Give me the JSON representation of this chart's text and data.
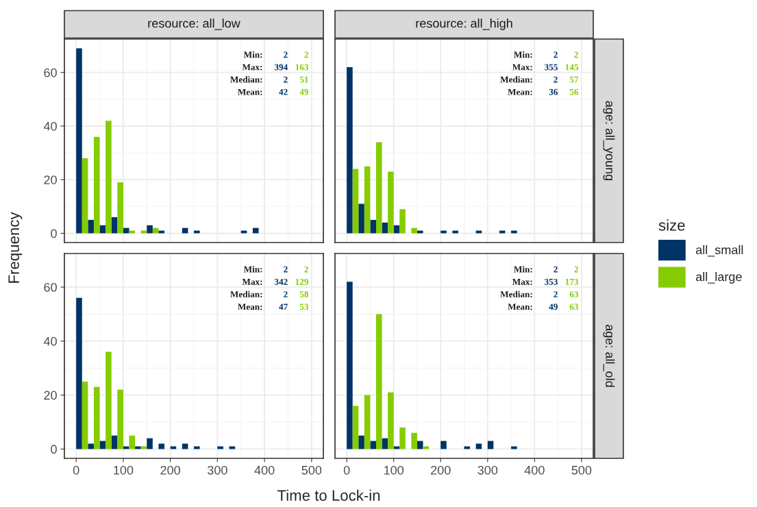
{
  "chart_data": [
    {
      "type": "histogram",
      "title": "resource: all_low",
      "ylabel": "Frequency",
      "legend_title": "size",
      "legend": "right",
      "grid": true,
      "tick_labels": "y",
      "bins": [
        0,
        25,
        50,
        75,
        100,
        125,
        150,
        175,
        200,
        225,
        250,
        275,
        300,
        325,
        350,
        375,
        400
      ],
      "series": [
        {
          "name": "all_small",
          "color": "#003366",
          "values": [
            69,
            5,
            3,
            6,
            2,
            0,
            3,
            1,
            0,
            2,
            1,
            0,
            0,
            0,
            1,
            2
          ]
        },
        {
          "name": "all_large",
          "color": "#85cc00",
          "values": [
            28,
            36,
            42,
            19,
            1,
            1,
            2,
            0,
            0,
            0,
            0,
            0,
            0,
            0,
            0,
            0
          ]
        }
      ],
      "xlim": [
        -25,
        525
      ],
      "xticks": [
        0,
        100,
        200,
        300,
        400,
        500
      ],
      "ylim": [
        -3.45,
        72.45
      ],
      "yticks": [
        0,
        20,
        40,
        60
      ],
      "annotations": [
        "Min:",
        "Max:",
        "Median:",
        "Mean:",
        "2",
        "394",
        "2",
        "42",
        "2",
        "163",
        "51",
        "49"
      ]
    },
    {
      "type": "histogram",
      "title": "resource: all_high",
      "y2label": "age: all_young",
      "grid": true,
      "tick_labels": false,
      "bins": [
        0,
        25,
        50,
        75,
        100,
        125,
        150,
        175,
        200,
        225,
        250,
        275,
        300,
        325,
        350,
        375,
        400
      ],
      "series": [
        {
          "color": "#003366",
          "values": [
            62,
            11,
            5,
            4,
            3,
            0,
            1,
            0,
            1,
            1,
            0,
            1,
            0,
            1,
            1,
            0
          ]
        },
        {
          "color": "#85cc00",
          "values": [
            24,
            25,
            34,
            23,
            9,
            2,
            0,
            0,
            0,
            0,
            0,
            0,
            0,
            0,
            0,
            0
          ]
        }
      ],
      "xlim": [
        -25,
        525
      ],
      "xticks": [
        0,
        100,
        200,
        300,
        400,
        500
      ],
      "ylim": [
        -3.45,
        72.45
      ],
      "yticks": [
        0,
        20,
        40,
        60
      ],
      "annotations": [
        "Min:",
        "Max:",
        "Median:",
        "Mean:",
        "2",
        "355",
        "2",
        "36",
        "2",
        "145",
        "57",
        "56"
      ]
    },
    {
      "type": "histogram",
      "xlabel": "Time to Lock-in",
      "grid": true,
      "bins": [
        0,
        25,
        50,
        75,
        100,
        125,
        150,
        175,
        200,
        225,
        250,
        275,
        300,
        325,
        350,
        375,
        400
      ],
      "series": [
        {
          "color": "#003366",
          "values": [
            56,
            2,
            3,
            5,
            1,
            1,
            4,
            2,
            1,
            2,
            1,
            0,
            1,
            1,
            0,
            0
          ]
        },
        {
          "color": "#85cc00",
          "values": [
            25,
            23,
            36,
            22,
            5,
            1,
            0,
            0,
            0,
            0,
            0,
            0,
            0,
            0,
            0,
            0
          ]
        }
      ],
      "xlim": [
        -25,
        525
      ],
      "xticks": [
        0,
        100,
        200,
        300,
        400,
        500
      ],
      "ylim": [
        -3.45,
        72.45
      ],
      "yticks": [
        0,
        20,
        40,
        60
      ],
      "annotations": [
        "Min:",
        "Max:",
        "Median:",
        "Mean:",
        "2",
        "342",
        "2",
        "47",
        "2",
        "129",
        "58",
        "53"
      ]
    },
    {
      "type": "histogram",
      "y2label": "age: all_old",
      "grid": true,
      "tick_labels": "x",
      "bins": [
        0,
        25,
        50,
        75,
        100,
        125,
        150,
        175,
        200,
        225,
        250,
        275,
        300,
        325,
        350,
        375,
        400
      ],
      "series": [
        {
          "color": "#003366",
          "values": [
            62,
            5,
            3,
            4,
            1,
            0,
            3,
            0,
            3,
            0,
            1,
            2,
            3,
            0,
            1,
            0
          ]
        },
        {
          "color": "#85cc00",
          "values": [
            16,
            20,
            50,
            21,
            8,
            6,
            1,
            0,
            0,
            0,
            0,
            0,
            0,
            0,
            0,
            0
          ]
        }
      ],
      "xlim": [
        -25,
        525
      ],
      "xticks": [
        0,
        100,
        200,
        300,
        400,
        500
      ],
      "ylim": [
        -3.45,
        72.45
      ],
      "yticks": [
        0,
        20,
        40,
        60
      ],
      "annotations": [
        "Min:",
        "Max:",
        "Median:",
        "Mean:",
        "2",
        "353",
        "2",
        "49",
        "2",
        "173",
        "63",
        "63"
      ]
    }
  ]
}
